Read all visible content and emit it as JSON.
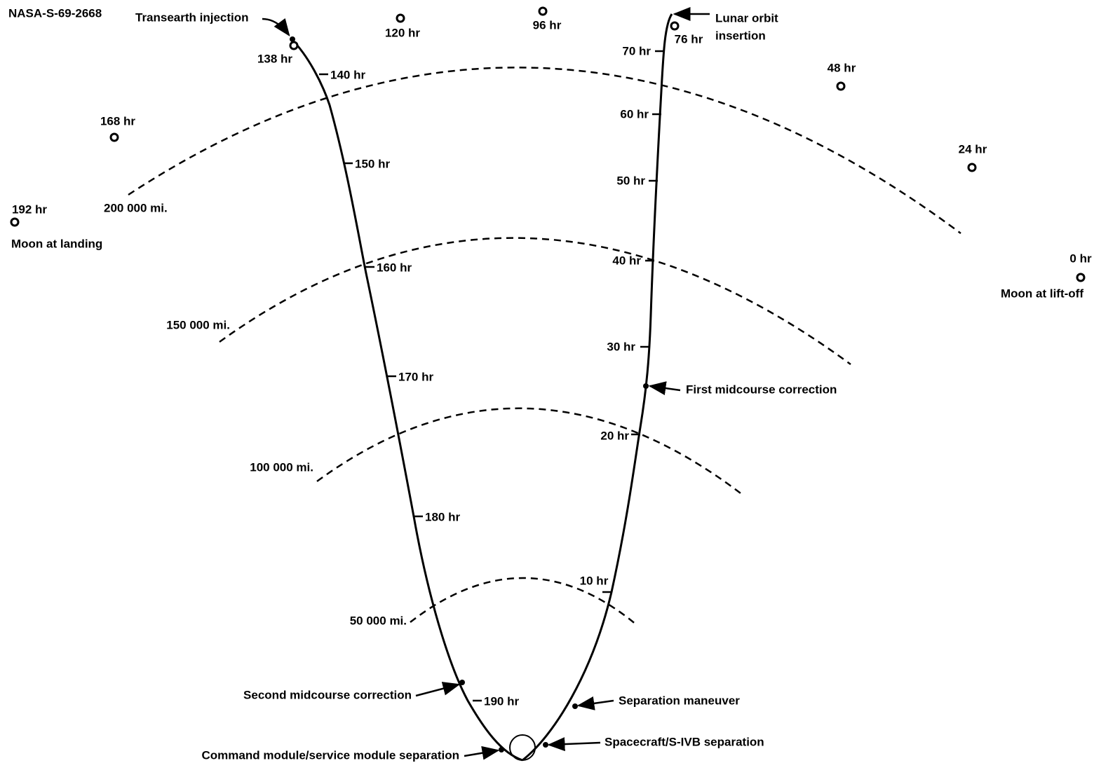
{
  "id_label": "NASA-S-69-2668",
  "moon_positions": [
    "0 hr",
    "24 hr",
    "48 hr",
    "76 hr",
    "96 hr",
    "120 hr",
    "138 hr",
    "168 hr",
    "192 hr"
  ],
  "moon_captions": [
    "Moon at lift-off",
    "Moon at landing"
  ],
  "distances": [
    "50 000 mi.",
    "100 000 mi.",
    "150 000 mi.",
    "200 000 mi."
  ],
  "outbound_times": [
    "10 hr",
    "20 hr",
    "30 hr",
    "40 hr",
    "50 hr",
    "60 hr",
    "70 hr"
  ],
  "return_times": [
    "140 hr",
    "150 hr",
    "160 hr",
    "170 hr",
    "180 hr",
    "190 hr"
  ],
  "events": [
    "Transearth injection",
    "First midcourse correction",
    "Second midcourse correction",
    "Separation maneuver",
    "Spacecraft/S-IVB separation",
    "Command module/service module separation"
  ],
  "lunar_orbit_insertion": [
    "Lunar orbit",
    "insertion"
  ]
}
